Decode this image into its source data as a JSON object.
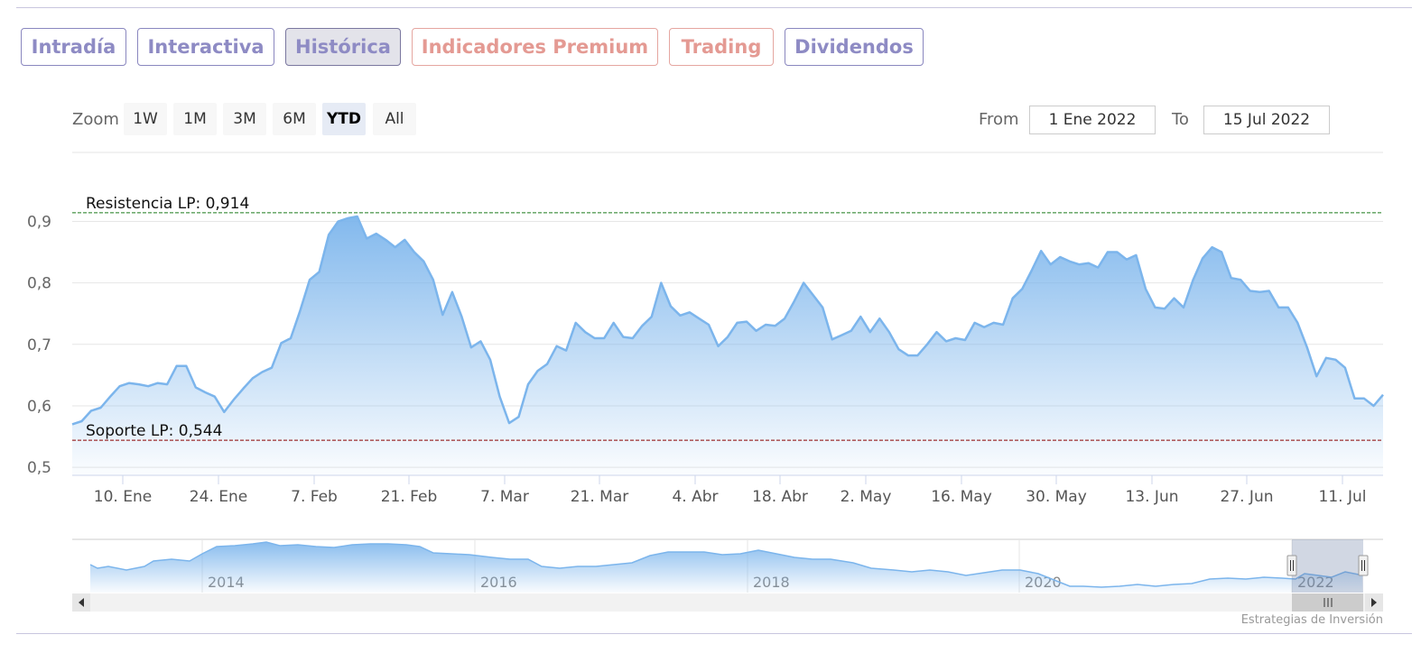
{
  "tabs": [
    {
      "label": "Intradía",
      "style": "purple",
      "active": false
    },
    {
      "label": "Interactiva",
      "style": "purple",
      "active": false
    },
    {
      "label": "Histórica",
      "style": "purple",
      "active": true
    },
    {
      "label": "Indicadores Premium",
      "style": "salmon",
      "active": false
    },
    {
      "label": "Trading",
      "style": "salmon",
      "active": false
    },
    {
      "label": "Dividendos",
      "style": "purple",
      "active": false
    }
  ],
  "range_selector": {
    "zoom_label": "Zoom",
    "buttons": [
      "1W",
      "1M",
      "3M",
      "6M",
      "YTD",
      "All"
    ],
    "selected": "YTD",
    "from_label": "From",
    "from_value": "1 Ene 2022",
    "to_label": "To",
    "to_value": "15 Jul 2022"
  },
  "credits": "Estrategias de Inversión",
  "colors": {
    "series_line": "#7cb5ec",
    "resistance_line": "#1a7a1a",
    "support_line": "#8b0000",
    "tab_purple": "#8e8bc4",
    "tab_salmon": "#e49a93"
  },
  "chart_data": {
    "type": "area",
    "series": [
      {
        "values": [
          0.57,
          0.575,
          0.592,
          0.597,
          0.615,
          0.632,
          0.637,
          0.635,
          0.632,
          0.637,
          0.635,
          0.665,
          0.665,
          0.63,
          0.622,
          0.615,
          0.59,
          0.61,
          0.628,
          0.645,
          0.655,
          0.662,
          0.702,
          0.71,
          0.755,
          0.805,
          0.818,
          0.878,
          0.9,
          0.905,
          0.908,
          0.872,
          0.88,
          0.87,
          0.858,
          0.87,
          0.85,
          0.835,
          0.805,
          0.748,
          0.785,
          0.745,
          0.695,
          0.705,
          0.675,
          0.615,
          0.572,
          0.582,
          0.635,
          0.657,
          0.668,
          0.697,
          0.69,
          0.735,
          0.72,
          0.71,
          0.71,
          0.735,
          0.712,
          0.71,
          0.73,
          0.745,
          0.8,
          0.762,
          0.747,
          0.752,
          0.742,
          0.732,
          0.697,
          0.712,
          0.735,
          0.737,
          0.722,
          0.732,
          0.73,
          0.742,
          0.77,
          0.8,
          0.78,
          0.76,
          0.708,
          0.715,
          0.722,
          0.745,
          0.72,
          0.742,
          0.72,
          0.692,
          0.682,
          0.682,
          0.7,
          0.72,
          0.705,
          0.71,
          0.707,
          0.735,
          0.728,
          0.735,
          0.732,
          0.775,
          0.79,
          0.82,
          0.852,
          0.83,
          0.842,
          0.835,
          0.83,
          0.832,
          0.825,
          0.85,
          0.85,
          0.838,
          0.845,
          0.79,
          0.76,
          0.758,
          0.775,
          0.76,
          0.805,
          0.84,
          0.858,
          0.85,
          0.808,
          0.805,
          0.787,
          0.785,
          0.787,
          0.76,
          0.76,
          0.735,
          0.695,
          0.648,
          0.678,
          0.675,
          0.662,
          0.612,
          0.612,
          0.6,
          0.618
        ]
      }
    ],
    "x_tick_labels": [
      "10. Ene",
      "24. Ene",
      "7. Feb",
      "21. Feb",
      "7. Mar",
      "21. Mar",
      "4. Abr",
      "18. Abr",
      "2. May",
      "16. May",
      "30. May",
      "13. Jun",
      "27. Jun",
      "11. Jul"
    ],
    "x_range": [
      "2022-01-03",
      "2022-07-15"
    ],
    "y_tick_labels": [
      "0,5",
      "0,6",
      "0,7",
      "0,8",
      "0,9"
    ],
    "ylim": [
      0.487,
      0.93
    ],
    "grid": true,
    "plot_lines": [
      {
        "label": "Resistencia LP: 0,914",
        "value": 0.914,
        "color": "#1a7a1a",
        "style": "dashed"
      },
      {
        "label": "Soporte LP: 0,544",
        "value": 0.544,
        "color": "#8b0000",
        "style": "dashed"
      }
    ],
    "navigator": {
      "x_labels": [
        "2014",
        "2016",
        "2018",
        "2020",
        "2022"
      ]
    }
  }
}
